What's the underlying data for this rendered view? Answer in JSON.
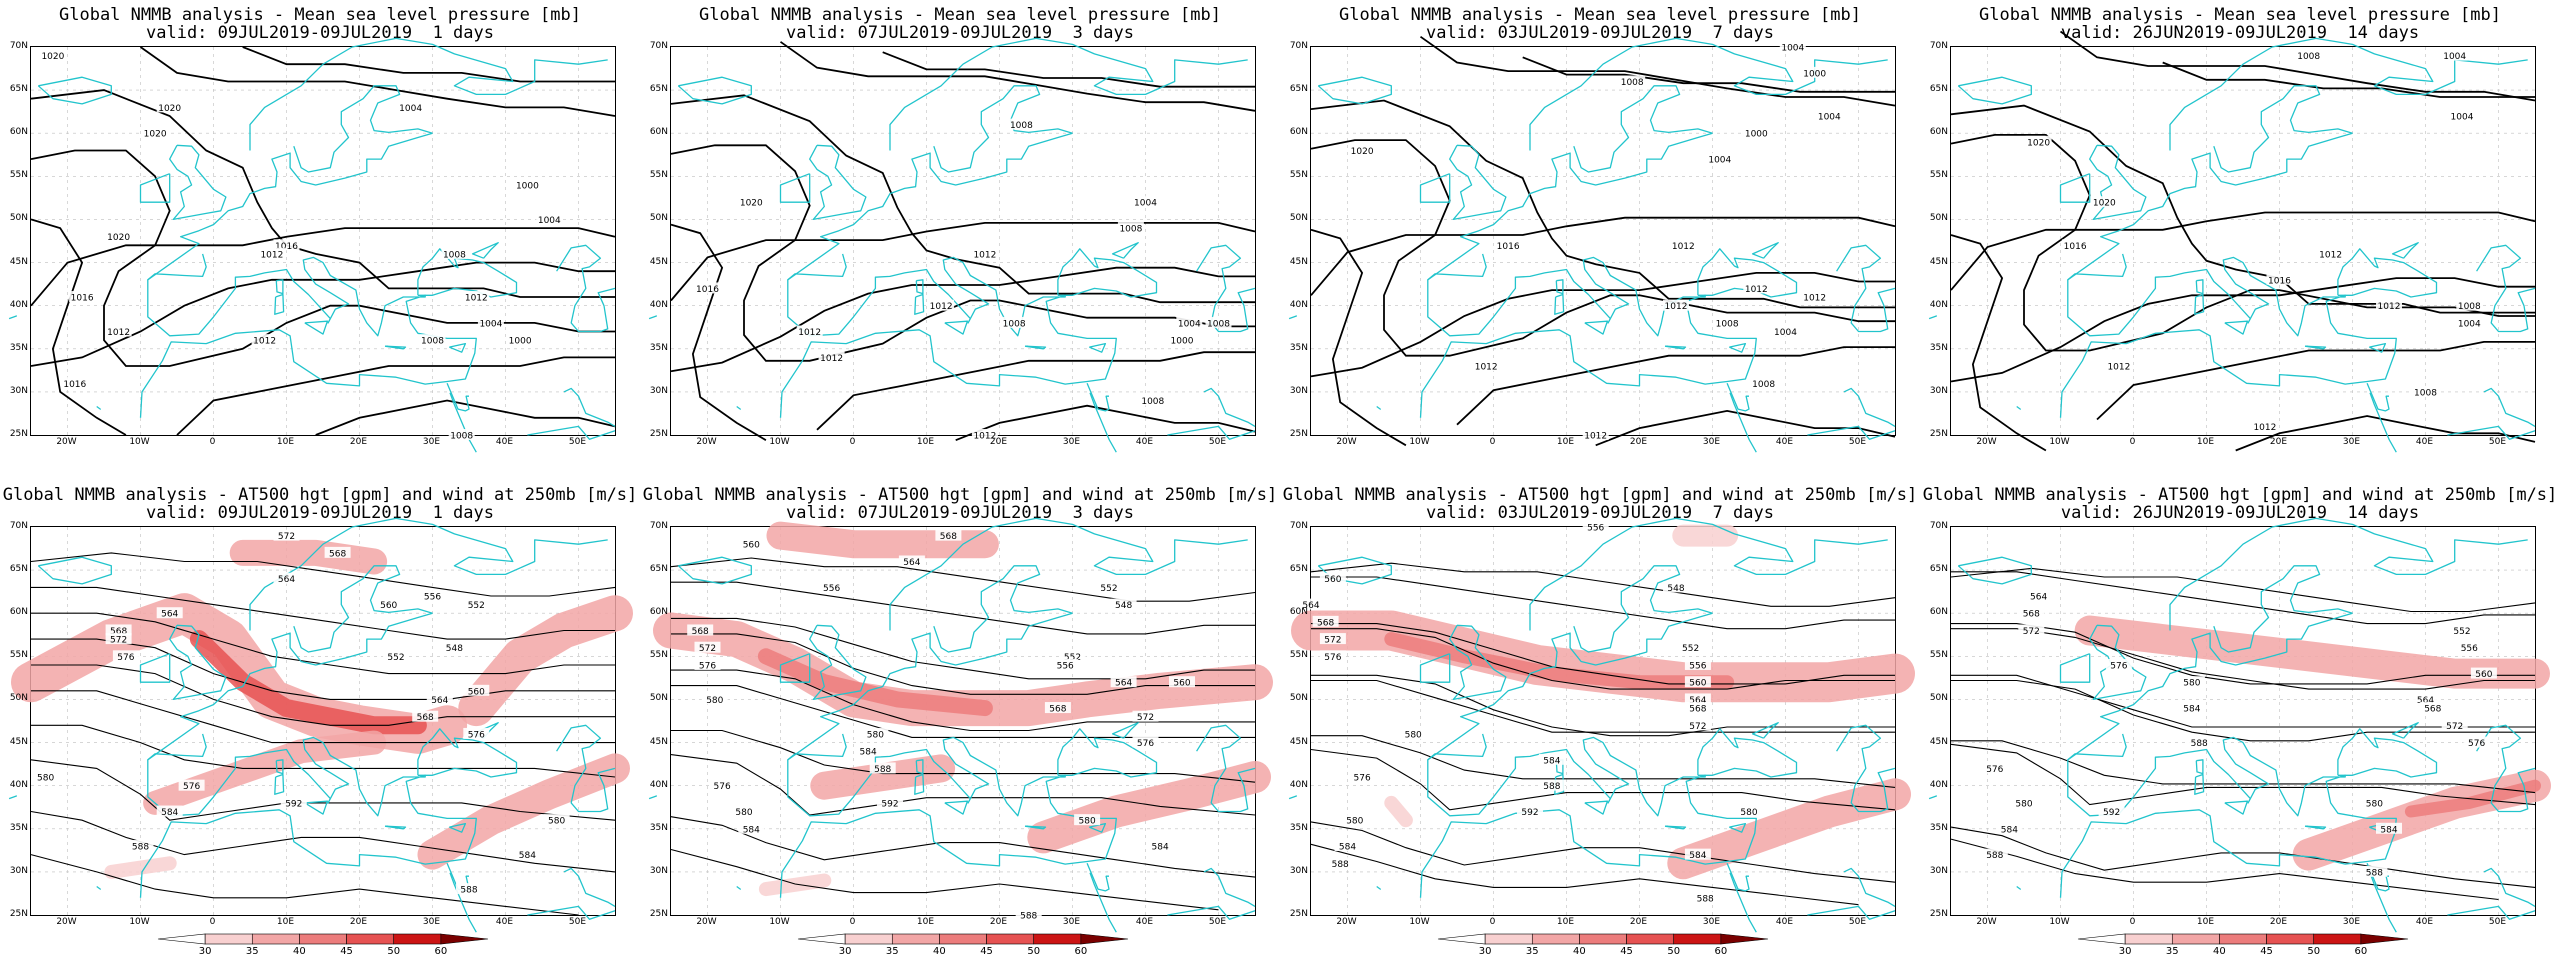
{
  "colors": {
    "coastline": "#22c4cc",
    "contour": "#000000",
    "grid": "#bfbfbf",
    "jet": [
      "#ffffff",
      "#f8d0d0",
      "#f2a6a6",
      "#ec7c7c",
      "#e65252",
      "#cc1414",
      "#7a0000"
    ]
  },
  "axes": {
    "lat_labels": [
      "70N",
      "65N",
      "60N",
      "55N",
      "50N",
      "45N",
      "40N",
      "35N",
      "30N",
      "25N"
    ],
    "lon_labels": [
      "20W",
      "10W",
      "0",
      "10E",
      "20E",
      "30E",
      "40E",
      "50E"
    ],
    "lon_range": [
      -25,
      55
    ],
    "lat_range": [
      25,
      70
    ]
  },
  "colorbar": {
    "labels": [
      "30",
      "35",
      "40",
      "45",
      "50",
      "60"
    ]
  },
  "panels": [
    {
      "id": "mslp-1d",
      "title": "Global NMMB analysis - Mean sea level pressure [mb]",
      "valid": "valid: 09JUL2019-09JUL2019  1 days",
      "field": "mslp",
      "contour_labels": [
        {
          "text": "1020",
          "lon": -22,
          "lat": 69
        },
        {
          "text": "1020",
          "lon": -8,
          "lat": 60
        },
        {
          "text": "1020",
          "lon": -6,
          "lat": 63
        },
        {
          "text": "1020",
          "lon": -13,
          "lat": 48
        },
        {
          "text": "1016",
          "lon": -18,
          "lat": 41
        },
        {
          "text": "1016",
          "lon": 10,
          "lat": 47
        },
        {
          "text": "1012",
          "lon": 8,
          "lat": 46
        },
        {
          "text": "1012",
          "lon": -13,
          "lat": 37
        },
        {
          "text": "1012",
          "lon": 7,
          "lat": 36
        },
        {
          "text": "1016",
          "lon": -19,
          "lat": 31
        },
        {
          "text": "1004",
          "lon": 27,
          "lat": 63
        },
        {
          "text": "1000",
          "lon": 43,
          "lat": 54
        },
        {
          "text": "1004",
          "lon": 46,
          "lat": 50
        },
        {
          "text": "1008",
          "lon": 33,
          "lat": 46
        },
        {
          "text": "1012",
          "lon": 36,
          "lat": 41
        },
        {
          "text": "1004",
          "lon": 38,
          "lat": 38
        },
        {
          "text": "1008",
          "lon": 30,
          "lat": 36
        },
        {
          "text": "1000",
          "lon": 42,
          "lat": 36
        },
        {
          "text": "1008",
          "lon": 34,
          "lat": 25
        }
      ]
    },
    {
      "id": "mslp-3d",
      "title": "Global NMMB analysis - Mean sea level pressure [mb]",
      "valid": "valid: 07JUL2019-09JUL2019  3 days",
      "field": "mslp",
      "contour_labels": [
        {
          "text": "1008",
          "lon": 23,
          "lat": 61
        },
        {
          "text": "1020",
          "lon": -14,
          "lat": 52
        },
        {
          "text": "1004",
          "lon": 40,
          "lat": 52
        },
        {
          "text": "1008",
          "lon": 38,
          "lat": 49
        },
        {
          "text": "1016",
          "lon": -20,
          "lat": 42
        },
        {
          "text": "1012",
          "lon": 18,
          "lat": 46
        },
        {
          "text": "1012",
          "lon": 12,
          "lat": 40
        },
        {
          "text": "1012",
          "lon": -6,
          "lat": 37
        },
        {
          "text": "1012",
          "lon": -3,
          "lat": 34
        },
        {
          "text": "1008",
          "lon": 22,
          "lat": 38
        },
        {
          "text": "1004",
          "lon": 46,
          "lat": 38
        },
        {
          "text": "1008",
          "lon": 50,
          "lat": 38
        },
        {
          "text": "1000",
          "lon": 45,
          "lat": 36
        },
        {
          "text": "1008",
          "lon": 41,
          "lat": 29
        },
        {
          "text": "1012",
          "lon": 18,
          "lat": 25
        }
      ]
    },
    {
      "id": "mslp-7d",
      "title": "Global NMMB analysis - Mean sea level pressure [mb]",
      "valid": "valid: 03JUL2019-09JUL2019  7 days",
      "field": "mslp",
      "contour_labels": [
        {
          "text": "1004",
          "lon": 41,
          "lat": 70
        },
        {
          "text": "1000",
          "lon": 44,
          "lat": 67
        },
        {
          "text": "1008",
          "lon": 19,
          "lat": 66
        },
        {
          "text": "1004",
          "lon": 46,
          "lat": 62
        },
        {
          "text": "1020",
          "lon": -18,
          "lat": 58
        },
        {
          "text": "1000",
          "lon": 36,
          "lat": 60
        },
        {
          "text": "1004",
          "lon": 31,
          "lat": 57
        },
        {
          "text": "1016",
          "lon": 2,
          "lat": 47
        },
        {
          "text": "1012",
          "lon": 26,
          "lat": 47
        },
        {
          "text": "1012",
          "lon": 36,
          "lat": 42
        },
        {
          "text": "1012",
          "lon": 25,
          "lat": 40
        },
        {
          "text": "1008",
          "lon": 32,
          "lat": 38
        },
        {
          "text": "1012",
          "lon": 44,
          "lat": 41
        },
        {
          "text": "1004",
          "lon": 40,
          "lat": 37
        },
        {
          "text": "1012",
          "lon": -1,
          "lat": 33
        },
        {
          "text": "1008",
          "lon": 37,
          "lat": 31
        },
        {
          "text": "1012",
          "lon": 14,
          "lat": 25
        }
      ]
    },
    {
      "id": "mslp-14d",
      "title": "Global NMMB analysis - Mean sea level pressure [mb]",
      "valid": "valid: 26JUN2019-09JUL2019  14 days",
      "field": "mslp",
      "contour_labels": [
        {
          "text": "1008",
          "lon": 24,
          "lat": 69
        },
        {
          "text": "1004",
          "lon": 44,
          "lat": 69
        },
        {
          "text": "1004",
          "lon": 45,
          "lat": 62
        },
        {
          "text": "1020",
          "lon": -13,
          "lat": 59
        },
        {
          "text": "1020",
          "lon": -4,
          "lat": 52
        },
        {
          "text": "1016",
          "lon": -8,
          "lat": 47
        },
        {
          "text": "1012",
          "lon": 27,
          "lat": 46
        },
        {
          "text": "1016",
          "lon": 20,
          "lat": 43
        },
        {
          "text": "1012",
          "lon": 35,
          "lat": 40
        },
        {
          "text": "1008",
          "lon": 46,
          "lat": 40
        },
        {
          "text": "1004",
          "lon": 46,
          "lat": 38
        },
        {
          "text": "1012",
          "lon": -2,
          "lat": 33
        },
        {
          "text": "1008",
          "lon": 40,
          "lat": 30
        },
        {
          "text": "1012",
          "lon": 18,
          "lat": 26
        }
      ]
    },
    {
      "id": "z500-1d",
      "title": "Global NMMB analysis - AT500 hgt [gpm] and wind at 250mb [m/s]",
      "valid": "valid: 09JUL2019-09JUL2019  1 days",
      "field": "z500",
      "contour_labels": [
        {
          "text": "572",
          "lon": 10,
          "lat": 69
        },
        {
          "text": "568",
          "lon": 17,
          "lat": 67
        },
        {
          "text": "564",
          "lon": 10,
          "lat": 64
        },
        {
          "text": "560",
          "lon": 24,
          "lat": 61
        },
        {
          "text": "564",
          "lon": -6,
          "lat": 60
        },
        {
          "text": "568",
          "lon": -13,
          "lat": 58
        },
        {
          "text": "572",
          "lon": -13,
          "lat": 57
        },
        {
          "text": "556",
          "lon": 30,
          "lat": 62
        },
        {
          "text": "552",
          "lon": 36,
          "lat": 61
        },
        {
          "text": "548",
          "lon": 33,
          "lat": 56
        },
        {
          "text": "552",
          "lon": 25,
          "lat": 55
        },
        {
          "text": "576",
          "lon": -12,
          "lat": 55
        },
        {
          "text": "560",
          "lon": 36,
          "lat": 51
        },
        {
          "text": "564",
          "lon": 31,
          "lat": 50
        },
        {
          "text": "568",
          "lon": 29,
          "lat": 48
        },
        {
          "text": "580",
          "lon": -23,
          "lat": 41
        },
        {
          "text": "576",
          "lon": -3,
          "lat": 40
        },
        {
          "text": "584",
          "lon": -6,
          "lat": 37
        },
        {
          "text": "588",
          "lon": -10,
          "lat": 33
        },
        {
          "text": "592",
          "lon": 11,
          "lat": 38
        },
        {
          "text": "576",
          "lon": 36,
          "lat": 46
        },
        {
          "text": "580",
          "lon": 47,
          "lat": 36
        },
        {
          "text": "584",
          "lon": 43,
          "lat": 32
        },
        {
          "text": "588",
          "lon": 35,
          "lat": 28
        }
      ]
    },
    {
      "id": "z500-3d",
      "title": "Global NMMB analysis - AT500 hgt [gpm] and wind at 250mb [m/s]",
      "valid": "valid: 07JUL2019-09JUL2019  3 days",
      "field": "z500",
      "contour_labels": [
        {
          "text": "560",
          "lon": -14,
          "lat": 68
        },
        {
          "text": "568",
          "lon": 13,
          "lat": 69
        },
        {
          "text": "564",
          "lon": 8,
          "lat": 66
        },
        {
          "text": "556",
          "lon": -3,
          "lat": 63
        },
        {
          "text": "552",
          "lon": 35,
          "lat": 63
        },
        {
          "text": "548",
          "lon": 37,
          "lat": 61
        },
        {
          "text": "568",
          "lon": -21,
          "lat": 58
        },
        {
          "text": "572",
          "lon": -20,
          "lat": 56
        },
        {
          "text": "576",
          "lon": -20,
          "lat": 54
        },
        {
          "text": "580",
          "lon": -19,
          "lat": 50
        },
        {
          "text": "552",
          "lon": 30,
          "lat": 55
        },
        {
          "text": "556",
          "lon": 29,
          "lat": 54
        },
        {
          "text": "560",
          "lon": 45,
          "lat": 52
        },
        {
          "text": "564",
          "lon": 37,
          "lat": 52
        },
        {
          "text": "568",
          "lon": 28,
          "lat": 49
        },
        {
          "text": "572",
          "lon": 40,
          "lat": 48
        },
        {
          "text": "576",
          "lon": 40,
          "lat": 45
        },
        {
          "text": "580",
          "lon": 3,
          "lat": 46
        },
        {
          "text": "584",
          "lon": 2,
          "lat": 44
        },
        {
          "text": "588",
          "lon": 4,
          "lat": 42
        },
        {
          "text": "576",
          "lon": -18,
          "lat": 40
        },
        {
          "text": "580",
          "lon": -15,
          "lat": 37
        },
        {
          "text": "584",
          "lon": -14,
          "lat": 35
        },
        {
          "text": "592",
          "lon": 5,
          "lat": 38
        },
        {
          "text": "580",
          "lon": 32,
          "lat": 36
        },
        {
          "text": "584",
          "lon": 42,
          "lat": 33
        },
        {
          "text": "588",
          "lon": 24,
          "lat": 25
        }
      ]
    },
    {
      "id": "z500-7d",
      "title": "Global NMMB analysis - AT500 hgt [gpm] and wind at 250mb [m/s]",
      "valid": "valid: 03JUL2019-09JUL2019  7 days",
      "field": "z500",
      "contour_labels": [
        {
          "text": "556",
          "lon": 14,
          "lat": 70
        },
        {
          "text": "560",
          "lon": -22,
          "lat": 64
        },
        {
          "text": "564",
          "lon": -25,
          "lat": 61
        },
        {
          "text": "568",
          "lon": -23,
          "lat": 59
        },
        {
          "text": "572",
          "lon": -22,
          "lat": 57
        },
        {
          "text": "576",
          "lon": -22,
          "lat": 55
        },
        {
          "text": "548",
          "lon": 25,
          "lat": 63
        },
        {
          "text": "552",
          "lon": 27,
          "lat": 56
        },
        {
          "text": "556",
          "lon": 28,
          "lat": 54
        },
        {
          "text": "560",
          "lon": 28,
          "lat": 52
        },
        {
          "text": "564",
          "lon": 28,
          "lat": 50
        },
        {
          "text": "568",
          "lon": 28,
          "lat": 49
        },
        {
          "text": "572",
          "lon": 28,
          "lat": 47
        },
        {
          "text": "580",
          "lon": -11,
          "lat": 46
        },
        {
          "text": "584",
          "lon": 8,
          "lat": 43
        },
        {
          "text": "588",
          "lon": 8,
          "lat": 40
        },
        {
          "text": "592",
          "lon": 5,
          "lat": 37
        },
        {
          "text": "576",
          "lon": -18,
          "lat": 41
        },
        {
          "text": "580",
          "lon": -19,
          "lat": 36
        },
        {
          "text": "584",
          "lon": -20,
          "lat": 33
        },
        {
          "text": "588",
          "lon": -21,
          "lat": 31
        },
        {
          "text": "580",
          "lon": 35,
          "lat": 37
        },
        {
          "text": "584",
          "lon": 28,
          "lat": 32
        },
        {
          "text": "588",
          "lon": 29,
          "lat": 27
        }
      ]
    },
    {
      "id": "z500-14d",
      "title": "Global NMMB analysis - AT500 hgt [gpm] and wind at 250mb [m/s]",
      "valid": "valid: 26JUN2019-09JUL2019  14 days",
      "field": "z500",
      "contour_labels": [
        {
          "text": "564",
          "lon": -13,
          "lat": 62
        },
        {
          "text": "568",
          "lon": -14,
          "lat": 60
        },
        {
          "text": "572",
          "lon": -14,
          "lat": 58
        },
        {
          "text": "576",
          "lon": -2,
          "lat": 54
        },
        {
          "text": "580",
          "lon": 8,
          "lat": 52
        },
        {
          "text": "552",
          "lon": 45,
          "lat": 58
        },
        {
          "text": "556",
          "lon": 46,
          "lat": 56
        },
        {
          "text": "560",
          "lon": 48,
          "lat": 53
        },
        {
          "text": "564",
          "lon": 40,
          "lat": 50
        },
        {
          "text": "568",
          "lon": 41,
          "lat": 49
        },
        {
          "text": "572",
          "lon": 44,
          "lat": 47
        },
        {
          "text": "576",
          "lon": 47,
          "lat": 45
        },
        {
          "text": "584",
          "lon": 8,
          "lat": 49
        },
        {
          "text": "588",
          "lon": 9,
          "lat": 45
        },
        {
          "text": "576",
          "lon": -19,
          "lat": 42
        },
        {
          "text": "580",
          "lon": -15,
          "lat": 38
        },
        {
          "text": "584",
          "lon": -17,
          "lat": 35
        },
        {
          "text": "588",
          "lon": -19,
          "lat": 32
        },
        {
          "text": "592",
          "lon": -3,
          "lat": 37
        },
        {
          "text": "580",
          "lon": 33,
          "lat": 38
        },
        {
          "text": "584",
          "lon": 35,
          "lat": 35
        },
        {
          "text": "588",
          "lon": 33,
          "lat": 30
        }
      ]
    }
  ]
}
